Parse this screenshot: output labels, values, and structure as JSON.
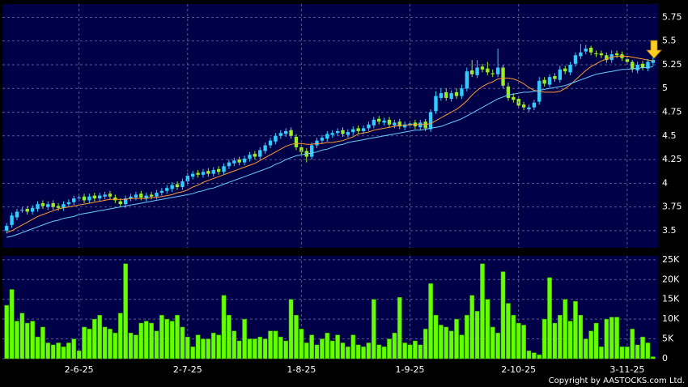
{
  "chart_data": [
    {
      "type": "candlestick",
      "up_color": "#33ccff",
      "down_color": "#99ee22",
      "grid": true,
      "ylim": [
        3.32,
        5.89
      ],
      "yticks": [
        3.5,
        3.75,
        4,
        4.25,
        4.5,
        4.75,
        5,
        5.25,
        5.5,
        5.75
      ],
      "open": [
        3.5,
        3.56,
        3.64,
        3.72,
        3.73,
        3.7,
        3.73,
        3.79,
        3.75,
        3.79,
        3.76,
        3.74,
        3.78,
        3.8,
        3.84,
        3.86,
        3.82,
        3.87,
        3.84,
        3.86,
        3.89,
        3.85,
        3.81,
        3.78,
        3.84,
        3.85,
        3.89,
        3.84,
        3.88,
        3.86,
        3.9,
        3.92,
        3.94,
        3.99,
        3.96,
        4.02,
        4.07,
        4.11,
        4.09,
        4.13,
        4.1,
        4.15,
        4.12,
        4.18,
        4.21,
        4.25,
        4.22,
        4.26,
        4.31,
        4.28,
        4.34,
        4.4,
        4.44,
        4.5,
        4.52,
        4.56,
        4.49,
        4.38,
        4.34,
        4.28,
        4.4,
        4.45,
        4.47,
        4.51,
        4.53,
        4.56,
        4.51,
        4.54,
        4.58,
        4.55,
        4.58,
        4.61,
        4.68,
        4.64,
        4.67,
        4.61,
        4.65,
        4.59,
        4.61,
        4.64,
        4.59,
        4.65,
        4.57,
        4.76,
        4.9,
        4.96,
        4.89,
        4.96,
        4.92,
        5.0,
        5.19,
        5.14,
        5.23,
        5.21,
        5.16,
        5.15,
        5.22,
        5.02,
        4.91,
        4.89,
        4.83,
        4.78,
        4.8,
        4.86,
        5.09,
        5.04,
        5.13,
        5.09,
        5.21,
        5.17,
        5.26,
        5.34,
        5.39,
        5.43,
        5.37,
        5.37,
        5.35,
        5.3,
        5.37,
        5.36,
        5.31,
        5.28,
        5.19,
        5.26,
        5.21,
        5.27
      ],
      "high": [
        3.58,
        3.69,
        3.73,
        3.75,
        3.76,
        3.77,
        3.81,
        3.82,
        3.81,
        3.82,
        3.79,
        3.81,
        3.83,
        3.87,
        3.88,
        3.89,
        3.89,
        3.9,
        3.9,
        3.91,
        3.92,
        3.88,
        3.84,
        3.87,
        3.89,
        3.91,
        3.92,
        3.9,
        3.91,
        3.93,
        3.95,
        3.98,
        4.01,
        4.02,
        4.05,
        4.11,
        4.13,
        4.14,
        4.15,
        4.16,
        4.17,
        4.18,
        4.21,
        4.25,
        4.27,
        4.28,
        4.29,
        4.33,
        4.34,
        4.38,
        4.43,
        4.48,
        4.53,
        4.56,
        4.58,
        4.59,
        4.52,
        4.41,
        4.37,
        4.43,
        4.48,
        4.51,
        4.55,
        4.56,
        4.58,
        4.59,
        4.57,
        4.6,
        4.61,
        4.61,
        4.65,
        4.7,
        4.71,
        4.69,
        4.7,
        4.67,
        4.68,
        4.65,
        4.66,
        4.67,
        4.67,
        4.68,
        4.78,
        4.97,
        5.0,
        5.0,
        4.98,
        5.0,
        5.04,
        5.22,
        5.3,
        5.3,
        5.26,
        5.28,
        5.2,
        5.42,
        5.25,
        5.06,
        4.95,
        4.92,
        4.86,
        4.83,
        4.88,
        5.12,
        5.12,
        5.15,
        5.16,
        5.24,
        5.24,
        5.28,
        5.38,
        5.47,
        5.46,
        5.45,
        5.4,
        5.4,
        5.38,
        5.4,
        5.4,
        5.39,
        5.34,
        5.3,
        5.28,
        5.29,
        5.31,
        5.33
      ],
      "low": [
        3.47,
        3.53,
        3.61,
        3.69,
        3.67,
        3.67,
        3.7,
        3.73,
        3.72,
        3.72,
        3.71,
        3.71,
        3.75,
        3.77,
        3.81,
        3.79,
        3.79,
        3.81,
        3.81,
        3.83,
        3.83,
        3.79,
        3.75,
        3.74,
        3.81,
        3.82,
        3.82,
        3.81,
        3.83,
        3.83,
        3.87,
        3.89,
        3.91,
        3.93,
        3.93,
        3.99,
        4.04,
        4.06,
        4.06,
        4.07,
        4.07,
        4.09,
        4.09,
        4.15,
        4.18,
        4.19,
        4.19,
        4.23,
        4.25,
        4.25,
        4.31,
        4.37,
        4.41,
        4.47,
        4.49,
        4.47,
        4.35,
        4.3,
        4.22,
        4.25,
        4.37,
        4.42,
        4.44,
        4.48,
        4.5,
        4.49,
        4.48,
        4.51,
        4.52,
        4.52,
        4.55,
        4.58,
        4.62,
        4.61,
        4.59,
        4.58,
        4.57,
        4.56,
        4.58,
        4.57,
        4.56,
        4.55,
        4.54,
        4.73,
        4.87,
        4.87,
        4.86,
        4.89,
        4.89,
        4.97,
        5.12,
        5.11,
        5.17,
        5.14,
        5.12,
        5.12,
        5.0,
        4.87,
        4.85,
        4.79,
        4.77,
        4.75,
        4.77,
        4.83,
        5.02,
        5.01,
        5.07,
        5.06,
        5.15,
        5.14,
        5.23,
        5.31,
        5.36,
        5.35,
        5.33,
        5.32,
        5.27,
        5.27,
        5.32,
        5.29,
        5.25,
        5.17,
        5.16,
        5.19,
        5.18,
        5.24
      ],
      "close": [
        3.55,
        3.66,
        3.7,
        3.72,
        3.7,
        3.74,
        3.78,
        3.76,
        3.78,
        3.75,
        3.74,
        3.78,
        3.8,
        3.84,
        3.85,
        3.82,
        3.86,
        3.84,
        3.87,
        3.88,
        3.86,
        3.82,
        3.78,
        3.84,
        3.86,
        3.88,
        3.85,
        3.87,
        3.86,
        3.9,
        3.92,
        3.95,
        3.98,
        3.96,
        4.02,
        4.08,
        4.1,
        4.09,
        4.12,
        4.1,
        4.14,
        4.12,
        4.18,
        4.22,
        4.24,
        4.22,
        4.26,
        4.3,
        4.28,
        4.35,
        4.4,
        4.45,
        4.5,
        4.53,
        4.55,
        4.5,
        4.38,
        4.33,
        4.28,
        4.4,
        4.45,
        4.48,
        4.52,
        4.53,
        4.55,
        4.52,
        4.54,
        4.57,
        4.55,
        4.58,
        4.62,
        4.67,
        4.65,
        4.66,
        4.62,
        4.64,
        4.6,
        4.62,
        4.63,
        4.6,
        4.64,
        4.58,
        4.75,
        4.92,
        4.95,
        4.9,
        4.95,
        4.92,
        5.0,
        5.18,
        5.15,
        5.22,
        5.2,
        5.17,
        5.15,
        5.22,
        5.03,
        4.9,
        4.88,
        4.82,
        4.8,
        4.8,
        4.85,
        5.08,
        5.05,
        5.12,
        5.1,
        5.2,
        5.18,
        5.25,
        5.35,
        5.38,
        5.42,
        5.38,
        5.36,
        5.35,
        5.3,
        5.36,
        5.35,
        5.32,
        5.28,
        5.2,
        5.25,
        5.22,
        5.28,
        5.3
      ],
      "lines": [
        {
          "color": "#ff9933",
          "values": [
            3.48,
            3.5,
            3.53,
            3.56,
            3.59,
            3.62,
            3.65,
            3.67,
            3.69,
            3.71,
            3.73,
            3.74,
            3.75,
            3.76,
            3.77,
            3.78,
            3.79,
            3.8,
            3.81,
            3.82,
            3.83,
            3.83,
            3.83,
            3.83,
            3.84,
            3.84,
            3.84,
            3.84,
            3.85,
            3.85,
            3.86,
            3.87,
            3.88,
            3.9,
            3.91,
            3.93,
            3.96,
            3.98,
            4.01,
            4.03,
            4.05,
            4.07,
            4.09,
            4.11,
            4.13,
            4.15,
            4.17,
            4.19,
            4.21,
            4.24,
            4.27,
            4.3,
            4.33,
            4.36,
            4.39,
            4.41,
            4.42,
            4.42,
            4.41,
            4.41,
            4.42,
            4.42,
            4.43,
            4.43,
            4.44,
            4.45,
            4.47,
            4.49,
            4.52,
            4.53,
            4.54,
            4.56,
            4.57,
            4.58,
            4.59,
            4.6,
            4.61,
            4.61,
            4.62,
            4.62,
            4.62,
            4.62,
            4.63,
            4.66,
            4.69,
            4.72,
            4.75,
            4.78,
            4.82,
            4.87,
            4.93,
            4.98,
            5.02,
            5.05,
            5.07,
            5.1,
            5.11,
            5.11,
            5.1,
            5.08,
            5.05,
            5.01,
            4.98,
            4.97,
            4.96,
            4.96,
            4.96,
            4.97,
            5.0,
            5.04,
            5.09,
            5.14,
            5.19,
            5.23,
            5.26,
            5.29,
            5.31,
            5.33,
            5.34,
            5.34,
            5.34,
            5.33,
            5.32,
            5.31,
            5.3,
            5.29
          ]
        },
        {
          "color": "#66ccff",
          "values": [
            3.43,
            3.44,
            3.46,
            3.48,
            3.5,
            3.52,
            3.54,
            3.56,
            3.58,
            3.6,
            3.61,
            3.63,
            3.64,
            3.65,
            3.67,
            3.68,
            3.69,
            3.7,
            3.71,
            3.72,
            3.73,
            3.74,
            3.75,
            3.76,
            3.77,
            3.78,
            3.79,
            3.8,
            3.81,
            3.82,
            3.83,
            3.84,
            3.85,
            3.86,
            3.87,
            3.88,
            3.89,
            3.91,
            3.92,
            3.94,
            3.95,
            3.97,
            3.99,
            4.01,
            4.03,
            4.05,
            4.07,
            4.09,
            4.11,
            4.13,
            4.15,
            4.17,
            4.2,
            4.22,
            4.25,
            4.27,
            4.29,
            4.3,
            4.31,
            4.32,
            4.33,
            4.35,
            4.36,
            4.38,
            4.4,
            4.41,
            4.43,
            4.44,
            4.45,
            4.46,
            4.47,
            4.48,
            4.49,
            4.5,
            4.51,
            4.52,
            4.53,
            4.54,
            4.55,
            4.56,
            4.56,
            4.57,
            4.58,
            4.59,
            4.6,
            4.62,
            4.64,
            4.66,
            4.68,
            4.71,
            4.74,
            4.77,
            4.8,
            4.83,
            4.86,
            4.89,
            4.91,
            4.93,
            4.94,
            4.95,
            4.96,
            4.96,
            4.97,
            4.98,
            4.99,
            5.0,
            5.01,
            5.02,
            5.03,
            5.05,
            5.07,
            5.09,
            5.11,
            5.13,
            5.15,
            5.16,
            5.17,
            5.18,
            5.19,
            5.2,
            5.2,
            5.21,
            5.21,
            5.22,
            5.22,
            5.23
          ]
        }
      ]
    },
    {
      "type": "bar",
      "color": "#66ff00",
      "grid": true,
      "ylim": [
        0,
        26000
      ],
      "yticks": [
        0,
        {
          "value": 5000,
          "label": "5K"
        },
        {
          "value": 10000,
          "label": "10K"
        },
        {
          "value": 15000,
          "label": "15K"
        },
        {
          "value": 20000,
          "label": "20K"
        },
        {
          "value": 25000,
          "label": "25K"
        }
      ],
      "categories": [
        null,
        null,
        null,
        null,
        null,
        null,
        null,
        null,
        null,
        null,
        null,
        null,
        null,
        null,
        "2-6-25",
        null,
        null,
        null,
        null,
        null,
        null,
        null,
        null,
        null,
        null,
        null,
        null,
        null,
        null,
        null,
        null,
        null,
        null,
        null,
        null,
        "2-7-25",
        null,
        null,
        null,
        null,
        null,
        null,
        null,
        null,
        null,
        null,
        null,
        null,
        null,
        null,
        null,
        null,
        null,
        null,
        null,
        null,
        null,
        "1-8-25",
        null,
        null,
        null,
        null,
        null,
        null,
        null,
        null,
        null,
        null,
        null,
        null,
        null,
        null,
        null,
        null,
        null,
        null,
        null,
        null,
        "1-9-25",
        null,
        null,
        null,
        null,
        null,
        null,
        null,
        null,
        null,
        null,
        null,
        null,
        null,
        null,
        null,
        null,
        null,
        null,
        null,
        null,
        "2-10-25",
        null,
        null,
        null,
        null,
        null,
        null,
        null,
        null,
        null,
        null,
        null,
        null,
        null,
        null,
        null,
        null,
        null,
        null,
        null,
        null,
        "3-11-25",
        null,
        null,
        null,
        null,
        null
      ],
      "values": [
        13500,
        17500,
        9500,
        11500,
        9000,
        9500,
        5500,
        8000,
        4000,
        3500,
        4000,
        3000,
        4000,
        5000,
        2000,
        8000,
        7500,
        10000,
        11000,
        8000,
        7500,
        6500,
        11500,
        24000,
        6500,
        6000,
        9000,
        9500,
        9000,
        7000,
        11000,
        10000,
        9500,
        11000,
        8000,
        5500,
        3000,
        6000,
        5000,
        5000,
        6500,
        6000,
        16000,
        11000,
        7000,
        4500,
        10000,
        5000,
        5000,
        5500,
        5000,
        7000,
        7000,
        5500,
        4500,
        15000,
        11000,
        7500,
        4000,
        6000,
        3500,
        5000,
        6500,
        4500,
        6000,
        4000,
        3000,
        6000,
        3500,
        3000,
        4000,
        15000,
        3500,
        3000,
        5000,
        6500,
        15500,
        4000,
        3500,
        4500,
        3500,
        7500,
        19000,
        11000,
        8500,
        8000,
        7000,
        10000,
        6000,
        11000,
        16000,
        12000,
        24000,
        15000,
        8000,
        6500,
        22000,
        14000,
        11000,
        9000,
        8500,
        2000,
        1500,
        1000,
        10000,
        20500,
        9000,
        11000,
        15000,
        9500,
        14500,
        11000,
        5000,
        7000,
        9000,
        3000,
        10000,
        10500,
        10500,
        3000,
        3000,
        7500,
        3500,
        5500,
        4000,
        500
      ]
    }
  ],
  "copyright": "Copyright by AASTOCKS.com Ltd."
}
